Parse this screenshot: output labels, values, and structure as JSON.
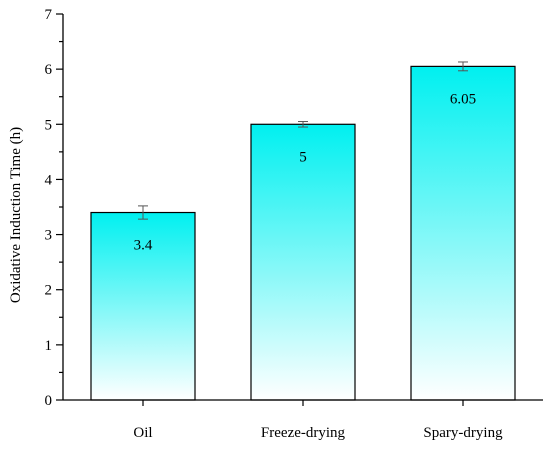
{
  "chart_data": {
    "type": "bar",
    "title": "",
    "xlabel": "",
    "ylabel": "Oxidative Induction Time (h)",
    "categories": [
      "Oil",
      "Freeze-drying",
      "Spary-drying"
    ],
    "values": [
      3.4,
      5,
      6.05
    ],
    "value_labels": [
      "3.4",
      "5",
      "6.05"
    ],
    "error": [
      0.12,
      0.05,
      0.08
    ],
    "ylim": [
      0,
      7
    ],
    "yticks": [
      "0",
      "1",
      "2",
      "3",
      "4",
      "5",
      "6",
      "7"
    ],
    "grid": false,
    "bar_gradient": {
      "top": "#00f0f0",
      "bottom": "#ffffff"
    }
  }
}
